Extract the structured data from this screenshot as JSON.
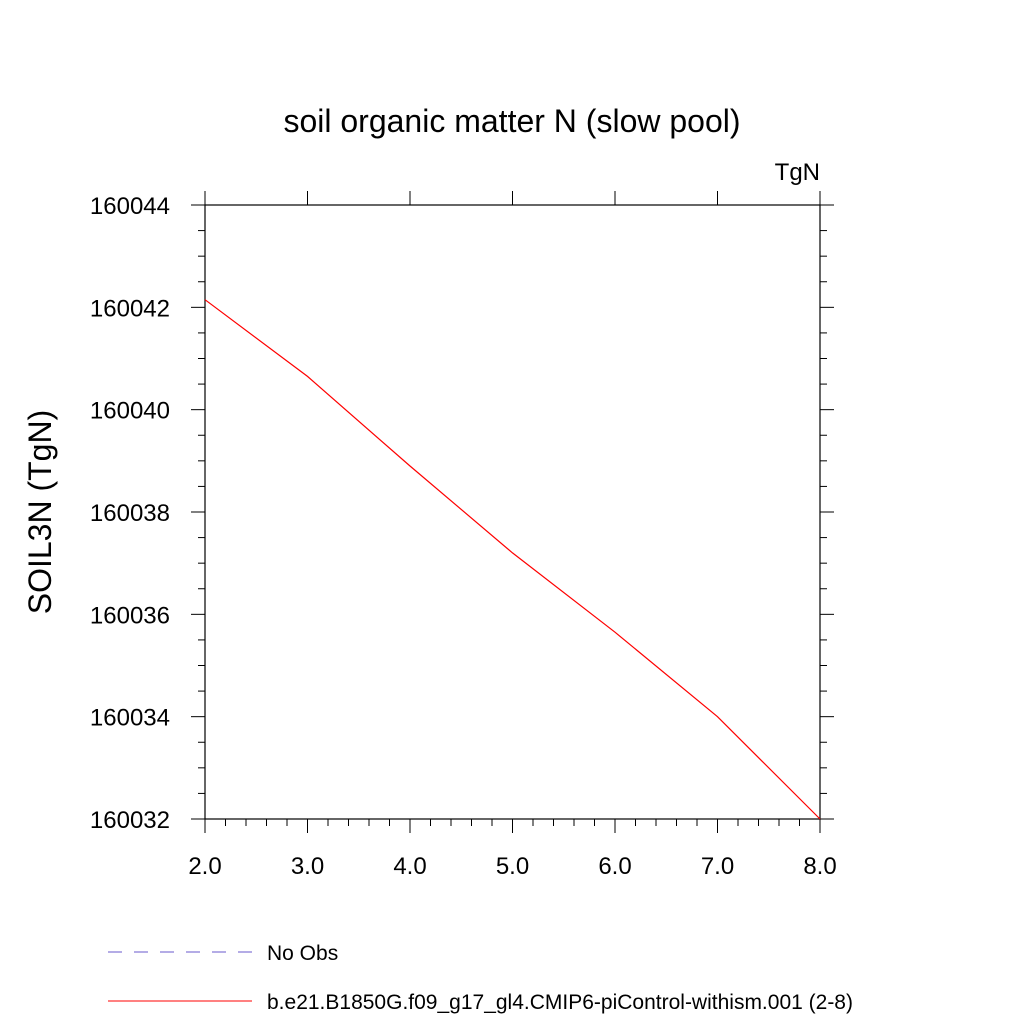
{
  "chart_data": {
    "type": "line",
    "title": "soil organic matter N (slow pool)",
    "units_label": "TgN",
    "ylabel": "SOIL3N  (TgN)",
    "xlabel": "",
    "xlim": [
      2.0,
      8.0
    ],
    "ylim": [
      160032,
      160044
    ],
    "xticks": [
      "2.0",
      "3.0",
      "4.0",
      "5.0",
      "6.0",
      "7.0",
      "8.0"
    ],
    "yticks": [
      "160032",
      "160034",
      "160036",
      "160038",
      "160040",
      "160042",
      "160044"
    ],
    "grid": false,
    "legend_position": "bottom",
    "series": [
      {
        "name": "No Obs",
        "color": "#6a5acd",
        "style": "dashed",
        "x": [],
        "y": []
      },
      {
        "name": "b.e21.B1850G.f09_g17_gl4.CMIP6-piControl-withism.001 (2-8)",
        "color": "#ff0000",
        "style": "solid",
        "x": [
          2,
          3,
          4,
          5,
          6,
          7,
          8
        ],
        "y": [
          160042.15,
          160040.65,
          160038.9,
          160037.2,
          160035.65,
          160034.0,
          160032.0
        ]
      }
    ]
  }
}
